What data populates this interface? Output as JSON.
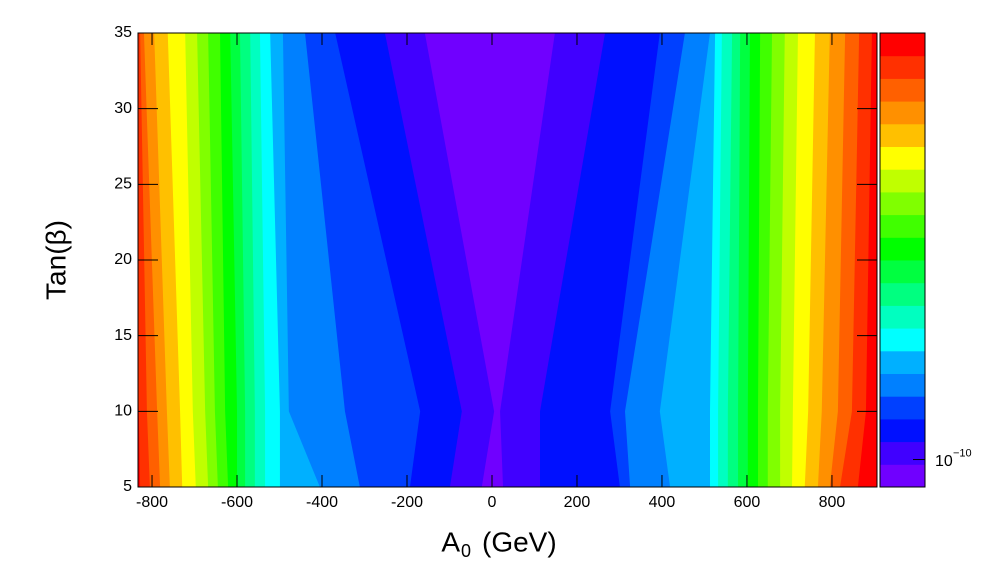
{
  "chart_data": {
    "type": "contour",
    "x_label": {
      "symbol": "A",
      "subscript": "0",
      "unit": "(GeV)"
    },
    "y_label": "Tan(β)",
    "xlim": [
      -833,
      906
    ],
    "ylim": [
      5,
      35
    ],
    "xticks": [
      -800,
      -600,
      -400,
      -200,
      0,
      200,
      400,
      600,
      800
    ],
    "yticks": [
      5,
      10,
      15,
      20,
      25,
      30,
      35
    ],
    "y_nodes": [
      5,
      10,
      35
    ],
    "levels": [
      "#7000ff",
      "#4000ff",
      "#0010ff",
      "#0040ff",
      "#0080ff",
      "#00b0ff",
      "#00ffff",
      "#00ffc0",
      "#00ff80",
      "#00ff40",
      "#00ff00",
      "#40ff00",
      "#80ff00",
      "#c0ff00",
      "#ffff00",
      "#ffc000",
      "#ff9000",
      "#ff6000",
      "#ff3000",
      "#ff0000"
    ],
    "contours": [
      {
        "left": [
          -24,
          5,
          -158
        ],
        "right": [
          26,
          19,
          148
        ]
      },
      {
        "left": [
          -99,
          -71,
          -252
        ],
        "right": [
          113,
          113,
          266
        ]
      },
      {
        "left": [
          -193,
          -169,
          -369
        ],
        "right": [
          301,
          278,
          395
        ]
      },
      {
        "left": [
          -311,
          -346,
          -440
        ],
        "right": [
          325,
          313,
          454
        ]
      },
      {
        "left": [
          -405,
          -478,
          -492
        ],
        "right": [
          419,
          395,
          513
        ]
      },
      {
        "left": [
          -499,
          -499,
          -522
        ],
        "right": [
          513,
          513,
          525
        ]
      },
      {
        "left": [
          -534,
          -534,
          -546
        ],
        "right": [
          532,
          532,
          541
        ]
      },
      {
        "left": [
          -558,
          -558,
          -569
        ],
        "right": [
          555,
          555,
          565
        ]
      },
      {
        "left": [
          -581,
          -581,
          -593
        ],
        "right": [
          579,
          579,
          584
        ]
      },
      {
        "left": [
          -600,
          -600,
          -616
        ],
        "right": [
          602,
          602,
          607
        ]
      },
      {
        "left": [
          -621,
          -628,
          -640
        ],
        "right": [
          626,
          626,
          631
        ]
      },
      {
        "left": [
          -645,
          -652,
          -668
        ],
        "right": [
          649,
          649,
          659
        ]
      },
      {
        "left": [
          -668,
          -675,
          -694
        ],
        "right": [
          678,
          678,
          689
        ]
      },
      {
        "left": [
          -697,
          -704,
          -722
        ],
        "right": [
          706,
          708,
          720
        ]
      },
      {
        "left": [
          -729,
          -734,
          -763
        ],
        "right": [
          736,
          744,
          760
        ]
      },
      {
        "left": [
          -758,
          -765,
          -795
        ],
        "right": [
          767,
          776,
          795
        ]
      },
      {
        "left": [
          -781,
          -788,
          -819
        ],
        "right": [
          795,
          814,
          831
        ]
      },
      {
        "left": [
          -805,
          -812,
          -828
        ],
        "right": [
          819,
          847,
          864
        ]
      },
      {
        "left": [
          -828,
          -831,
          -870
        ],
        "right": [
          861,
          880,
          894
        ]
      }
    ],
    "zlim": [
      8e-11,
      3.2e-09
    ],
    "z_log": true,
    "zticks": [
      {
        "value": 1e-10,
        "base": "10",
        "exponent": "−10"
      }
    ]
  }
}
